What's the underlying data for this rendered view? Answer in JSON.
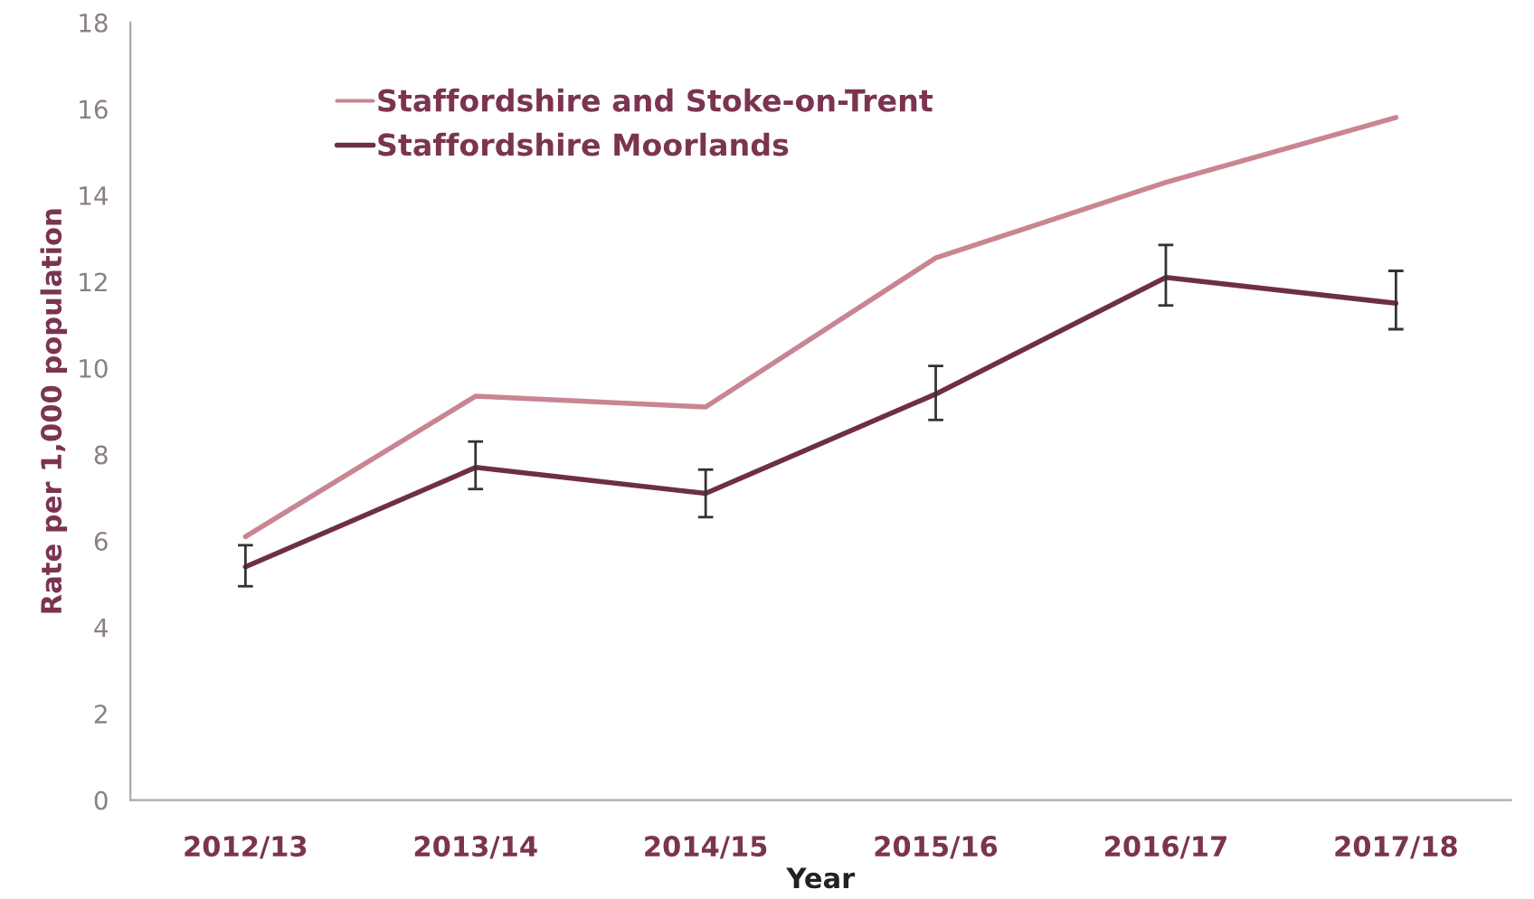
{
  "chart_data": {
    "type": "line",
    "xlabel": "Year",
    "ylabel": "Rate per 1,000 population",
    "categories": [
      "2012/13",
      "2013/14",
      "2014/15",
      "2015/16",
      "2016/17",
      "2017/18"
    ],
    "series": [
      {
        "name": "Staffordshire and Stoke-on-Trent",
        "color": "#c98592",
        "values": [
          6.1,
          9.35,
          9.1,
          12.55,
          14.3,
          15.8
        ]
      },
      {
        "name": "Staffordshire Moorlands",
        "color": "#6e2f45",
        "values": [
          5.4,
          7.7,
          7.1,
          9.4,
          12.1,
          11.5
        ],
        "errors": [
          [
            4.95,
            5.9
          ],
          [
            7.2,
            8.3
          ],
          [
            6.55,
            7.65
          ],
          [
            8.8,
            10.05
          ],
          [
            11.45,
            12.85
          ],
          [
            10.9,
            12.25
          ]
        ]
      }
    ],
    "ylim": [
      0,
      18
    ],
    "yticks": [
      0,
      2,
      4,
      6,
      8,
      10,
      12,
      14,
      16,
      18
    ],
    "grid": false,
    "legend": "top left",
    "marker": "none",
    "line_style": "solid"
  }
}
